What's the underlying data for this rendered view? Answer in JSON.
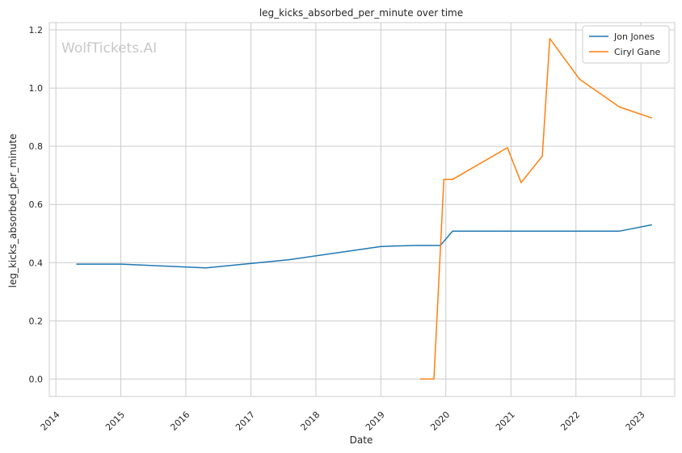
{
  "chart_data": {
    "type": "line",
    "title": "leg_kicks_absorbed_per_minute over time",
    "xlabel": "Date",
    "ylabel": "leg_kicks_absorbed_per_minute",
    "watermark": "WolfTickets.AI",
    "xlim": [
      "2013-11-25",
      "2023-07-10"
    ],
    "ylim": [
      -0.06,
      1.225
    ],
    "x_ticks": [
      "2014",
      "2015",
      "2016",
      "2017",
      "2018",
      "2019",
      "2020",
      "2021",
      "2022",
      "2023"
    ],
    "y_ticks": [
      "0.0",
      "0.2",
      "0.4",
      "0.6",
      "0.8",
      "1.0",
      "1.2"
    ],
    "y_tick_values": [
      0.0,
      0.2,
      0.4,
      0.6,
      0.8,
      1.0,
      1.2
    ],
    "grid": true,
    "legend_position": "top-right",
    "series": [
      {
        "name": "Jon Jones",
        "color": "#1f77b4",
        "points": [
          {
            "x": "2014-04-26",
            "y": 0.395
          },
          {
            "x": "2015-01-03",
            "y": 0.395
          },
          {
            "x": "2016-04-23",
            "y": 0.382
          },
          {
            "x": "2017-07-29",
            "y": 0.41
          },
          {
            "x": "2018-12-29",
            "y": 0.455
          },
          {
            "x": "2019-03-02",
            "y": 0.457
          },
          {
            "x": "2019-07-06",
            "y": 0.459
          },
          {
            "x": "2019-12-01",
            "y": 0.459
          },
          {
            "x": "2020-02-08",
            "y": 0.508
          },
          {
            "x": "2022-09-01",
            "y": 0.508
          },
          {
            "x": "2023-03-04",
            "y": 0.53
          }
        ]
      },
      {
        "name": "Ciryl Gane",
        "color": "#ff7f0e",
        "points": [
          {
            "x": "2019-08-10",
            "y": 0.0
          },
          {
            "x": "2019-10-26",
            "y": 0.0
          },
          {
            "x": "2019-12-21",
            "y": 0.686
          },
          {
            "x": "2020-02-08",
            "y": 0.686
          },
          {
            "x": "2020-12-12",
            "y": 0.795
          },
          {
            "x": "2021-02-27",
            "y": 0.675
          },
          {
            "x": "2021-06-26",
            "y": 0.766
          },
          {
            "x": "2021-08-07",
            "y": 1.17
          },
          {
            "x": "2022-01-22",
            "y": 1.03
          },
          {
            "x": "2022-09-03",
            "y": 0.935
          },
          {
            "x": "2023-03-04",
            "y": 0.897
          }
        ]
      }
    ]
  }
}
